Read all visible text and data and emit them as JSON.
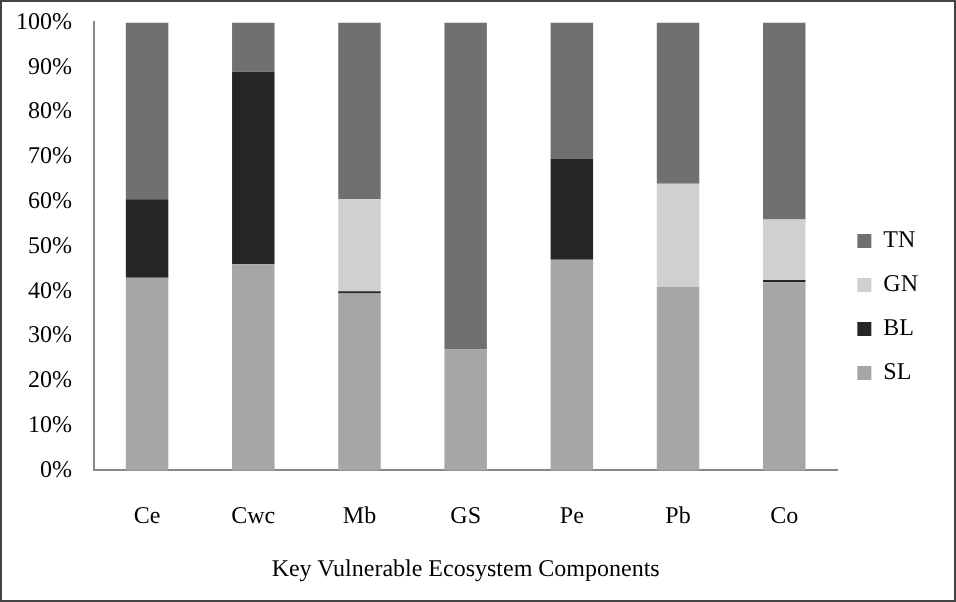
{
  "chart_data": {
    "type": "bar",
    "stacked": true,
    "xlabel": "Key Vulnerable Ecosystem Components",
    "categories": [
      "Ce",
      "Cwc",
      "Mb",
      "GS",
      "Pe",
      "Pb",
      "Co"
    ],
    "series": [
      {
        "name": "SL",
        "color": "#a6a6a6",
        "values": [
          43,
          46,
          39.5,
          27,
          47,
          41,
          42
        ]
      },
      {
        "name": "BL",
        "color": "#262626",
        "values": [
          17.5,
          43,
          0.5,
          0,
          22.5,
          0,
          0.5
        ]
      },
      {
        "name": "GN",
        "color": "#d0d0d0",
        "values": [
          0,
          0,
          20.5,
          0,
          0,
          23,
          13.5
        ]
      },
      {
        "name": "TN",
        "color": "#707070",
        "values": [
          39.5,
          11,
          39.5,
          73,
          30.5,
          36,
          44
        ]
      }
    ],
    "ylim": [
      0,
      100
    ],
    "yticks": [
      {
        "value": 0,
        "label": "0%"
      },
      {
        "value": 10,
        "label": "10%"
      },
      {
        "value": 20,
        "label": "20%"
      },
      {
        "value": 30,
        "label": "30%"
      },
      {
        "value": 40,
        "label": "40%"
      },
      {
        "value": 50,
        "label": "50%"
      },
      {
        "value": 60,
        "label": "60%"
      },
      {
        "value": 70,
        "label": "70%"
      },
      {
        "value": 80,
        "label": "80%"
      },
      {
        "value": 90,
        "label": "90%"
      },
      {
        "value": 100,
        "label": "100%"
      }
    ],
    "grid": false,
    "legend": "right"
  }
}
